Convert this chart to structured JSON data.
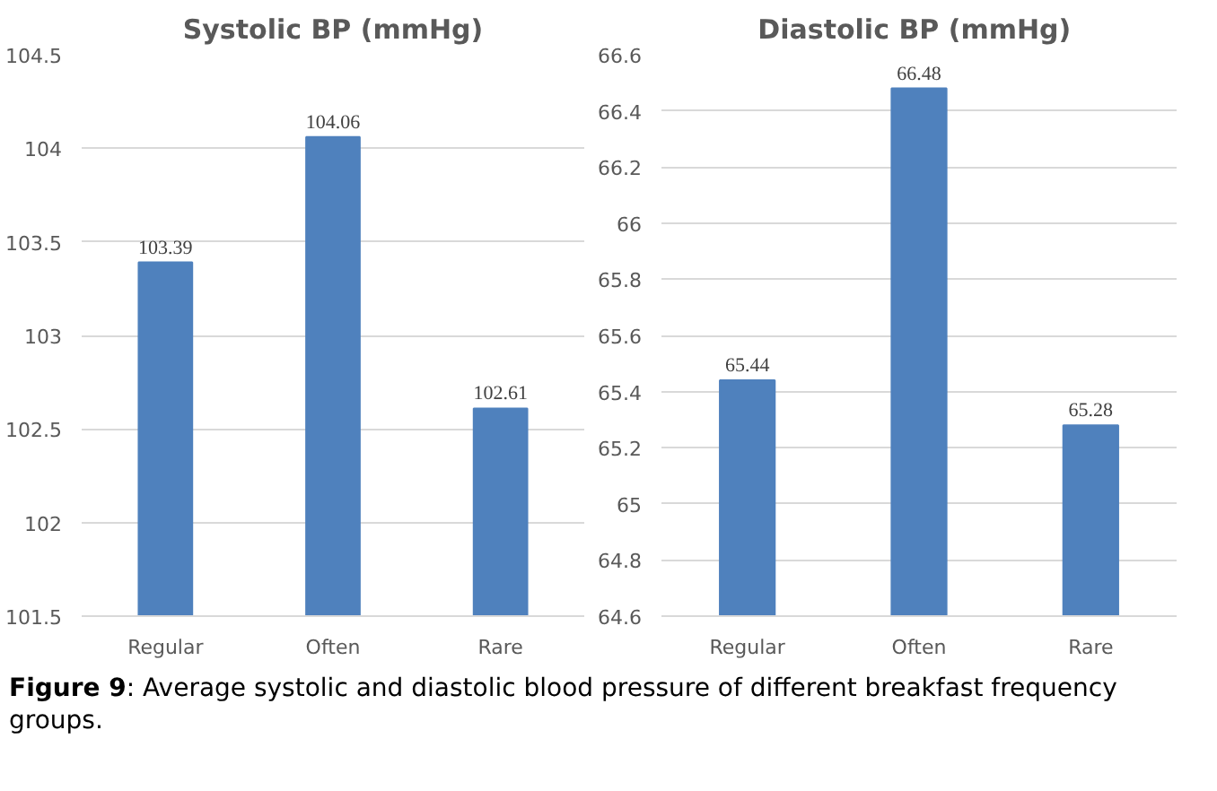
{
  "chart_data": [
    {
      "type": "bar",
      "title": "Systolic BP (mmHg)",
      "categories": [
        "Regular",
        "Often",
        "Rare"
      ],
      "values": [
        103.39,
        104.06,
        102.61
      ],
      "color": "#4f81bd",
      "ylim": [
        101.5,
        104.5
      ],
      "yticks": [
        101.5,
        102,
        102.5,
        103,
        103.5,
        104,
        104.5
      ],
      "grid": "y",
      "data_labels": true
    },
    {
      "type": "bar",
      "title": "Diastolic BP  (mmHg)",
      "categories": [
        "Regular",
        "Often",
        "Rare"
      ],
      "values": [
        65.44,
        66.48,
        65.28
      ],
      "color": "#4f81bd",
      "ylim": [
        64.6,
        66.6
      ],
      "yticks": [
        64.6,
        64.8,
        65,
        65.2,
        65.4,
        65.6,
        65.8,
        66,
        66.2,
        66.4,
        66.6
      ],
      "grid": "y",
      "data_labels": true,
      "annotations": [
        "Figure 9: Average systolic and diastolic blood pressure of different breakfast frequency groups."
      ]
    }
  ]
}
